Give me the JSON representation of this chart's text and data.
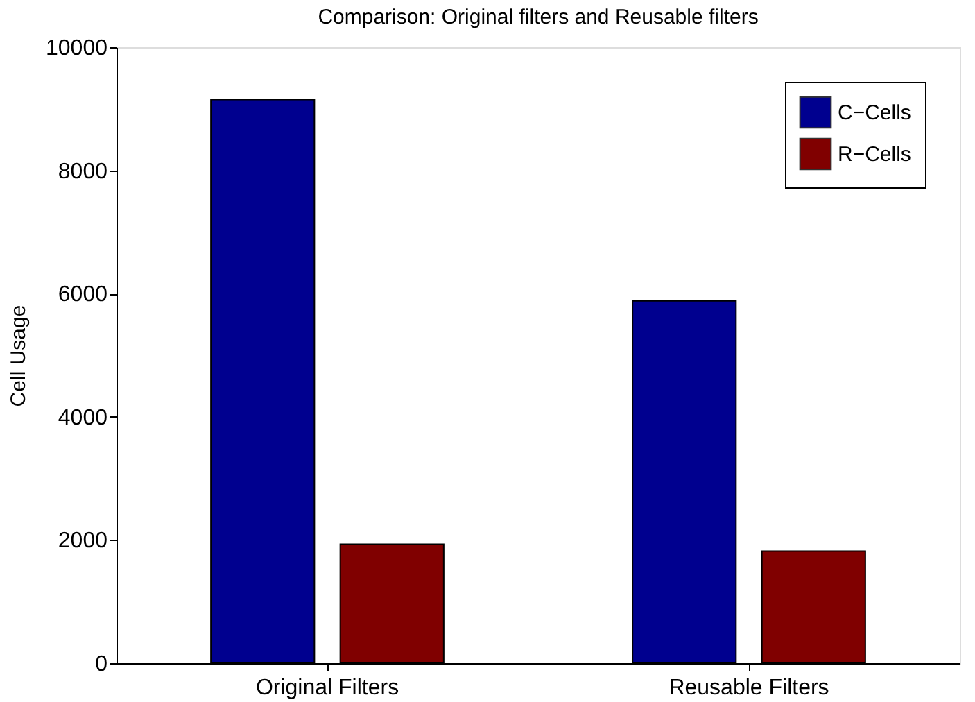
{
  "chart_data": {
    "type": "bar",
    "title": "Comparison: Original filters and Reusable filters",
    "ylabel": "Cell Usage",
    "categories": [
      "Original Filters",
      "Reusable Filters"
    ],
    "series": [
      {
        "name": "C−Cells",
        "color": "#00008f",
        "values": [
          9150,
          5880
        ]
      },
      {
        "name": "R−Cells",
        "color": "#800000",
        "values": [
          1930,
          1820
        ]
      }
    ],
    "ylim": [
      0,
      10000
    ],
    "yticks": [
      0,
      2000,
      4000,
      6000,
      8000,
      10000
    ],
    "grid": false,
    "legend": "top right"
  }
}
